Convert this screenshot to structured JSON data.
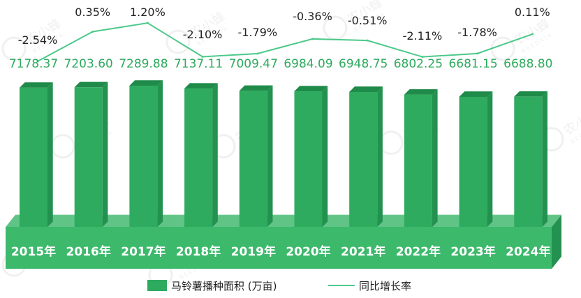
{
  "chart_data": {
    "type": "bar",
    "categories": [
      "2015年",
      "2016年",
      "2017年",
      "2018年",
      "2019年",
      "2020年",
      "2021年",
      "2022年",
      "2023年",
      "2024年"
    ],
    "series": [
      {
        "name": "马铃薯播种面积 (万亩)",
        "type": "bar",
        "values": [
          7178.37,
          7203.6,
          7289.88,
          7137.11,
          7009.47,
          6984.09,
          6948.75,
          6802.25,
          6681.15,
          6688.8
        ],
        "labels": [
          "7178.37",
          "7203.60",
          "7289.88",
          "7137.11",
          "7009.47",
          "6984.09",
          "6948.75",
          "6802.25",
          "6681.15",
          "6688.80"
        ]
      },
      {
        "name": "同比增长率",
        "type": "line",
        "values": [
          -2.54,
          0.35,
          1.2,
          -2.1,
          -1.79,
          -0.36,
          -0.51,
          -2.11,
          -1.78,
          0.11
        ],
        "labels": [
          "-2.54%",
          "0.35%",
          "1.20%",
          "-2.10%",
          "-1.79%",
          "-0.36%",
          "-0.51%",
          "-2.11%",
          "-1.78%",
          "0.11%"
        ]
      }
    ],
    "colors": {
      "bar_front": "#2eab5e",
      "bar_top": "#1f8a49",
      "bar_side": "#23914f",
      "base_front": "#3cb96b",
      "base_top": "#5fc486",
      "line": "#4cc98a",
      "bar_label": "#2eab5e",
      "rate_label": "#222222",
      "axis_label": "#ffffff"
    },
    "watermark": {
      "text": "农小蜂",
      "subtext": "BEEDATA"
    },
    "grid": false,
    "legend": "bottom-center"
  }
}
